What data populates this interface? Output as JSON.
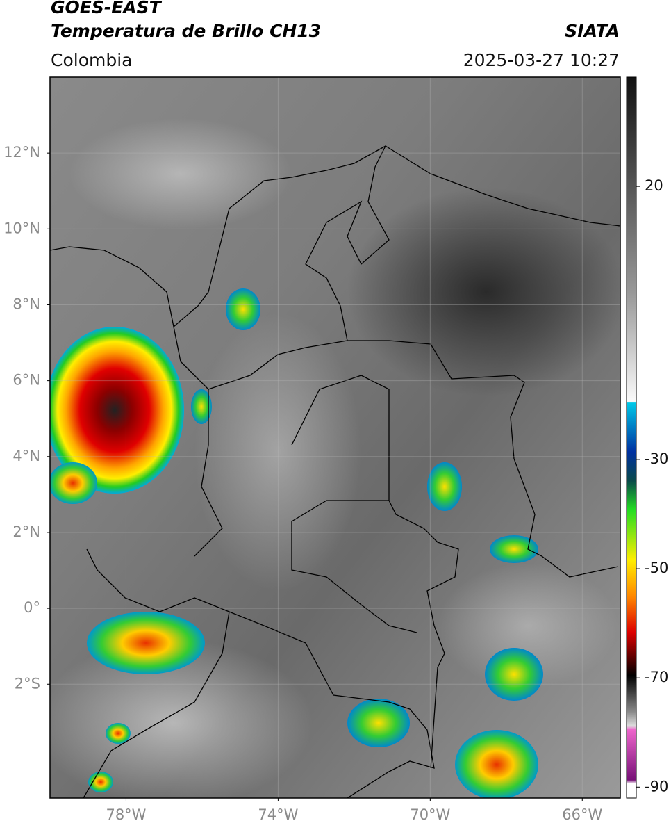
{
  "header": {
    "title": "GOES-EAST",
    "subtitle": "Temperatura de Brillo CH13",
    "source": "SIATA",
    "region": "Colombia",
    "datetime": "2025-03-27 10:27"
  },
  "map": {
    "xlim": [
      -80,
      -65
    ],
    "ylim": [
      -5,
      14
    ],
    "xticks": [
      {
        "value": -78,
        "label": "78°W"
      },
      {
        "value": -74,
        "label": "74°W"
      },
      {
        "value": -70,
        "label": "70°W"
      },
      {
        "value": -66,
        "label": "66°W"
      }
    ],
    "yticks": [
      {
        "value": 12,
        "label": "12°N"
      },
      {
        "value": 10,
        "label": "10°N"
      },
      {
        "value": 8,
        "label": "8°N"
      },
      {
        "value": 6,
        "label": "6°N"
      },
      {
        "value": 4,
        "label": "4°N"
      },
      {
        "value": 2,
        "label": "2°N"
      },
      {
        "value": 0,
        "label": "0°"
      },
      {
        "value": -2,
        "label": "2°S"
      }
    ],
    "grid": true
  },
  "colorbar": {
    "ylim": [
      -92,
      40
    ],
    "yticks": [
      20,
      -30,
      -50,
      -70,
      -90
    ]
  }
}
